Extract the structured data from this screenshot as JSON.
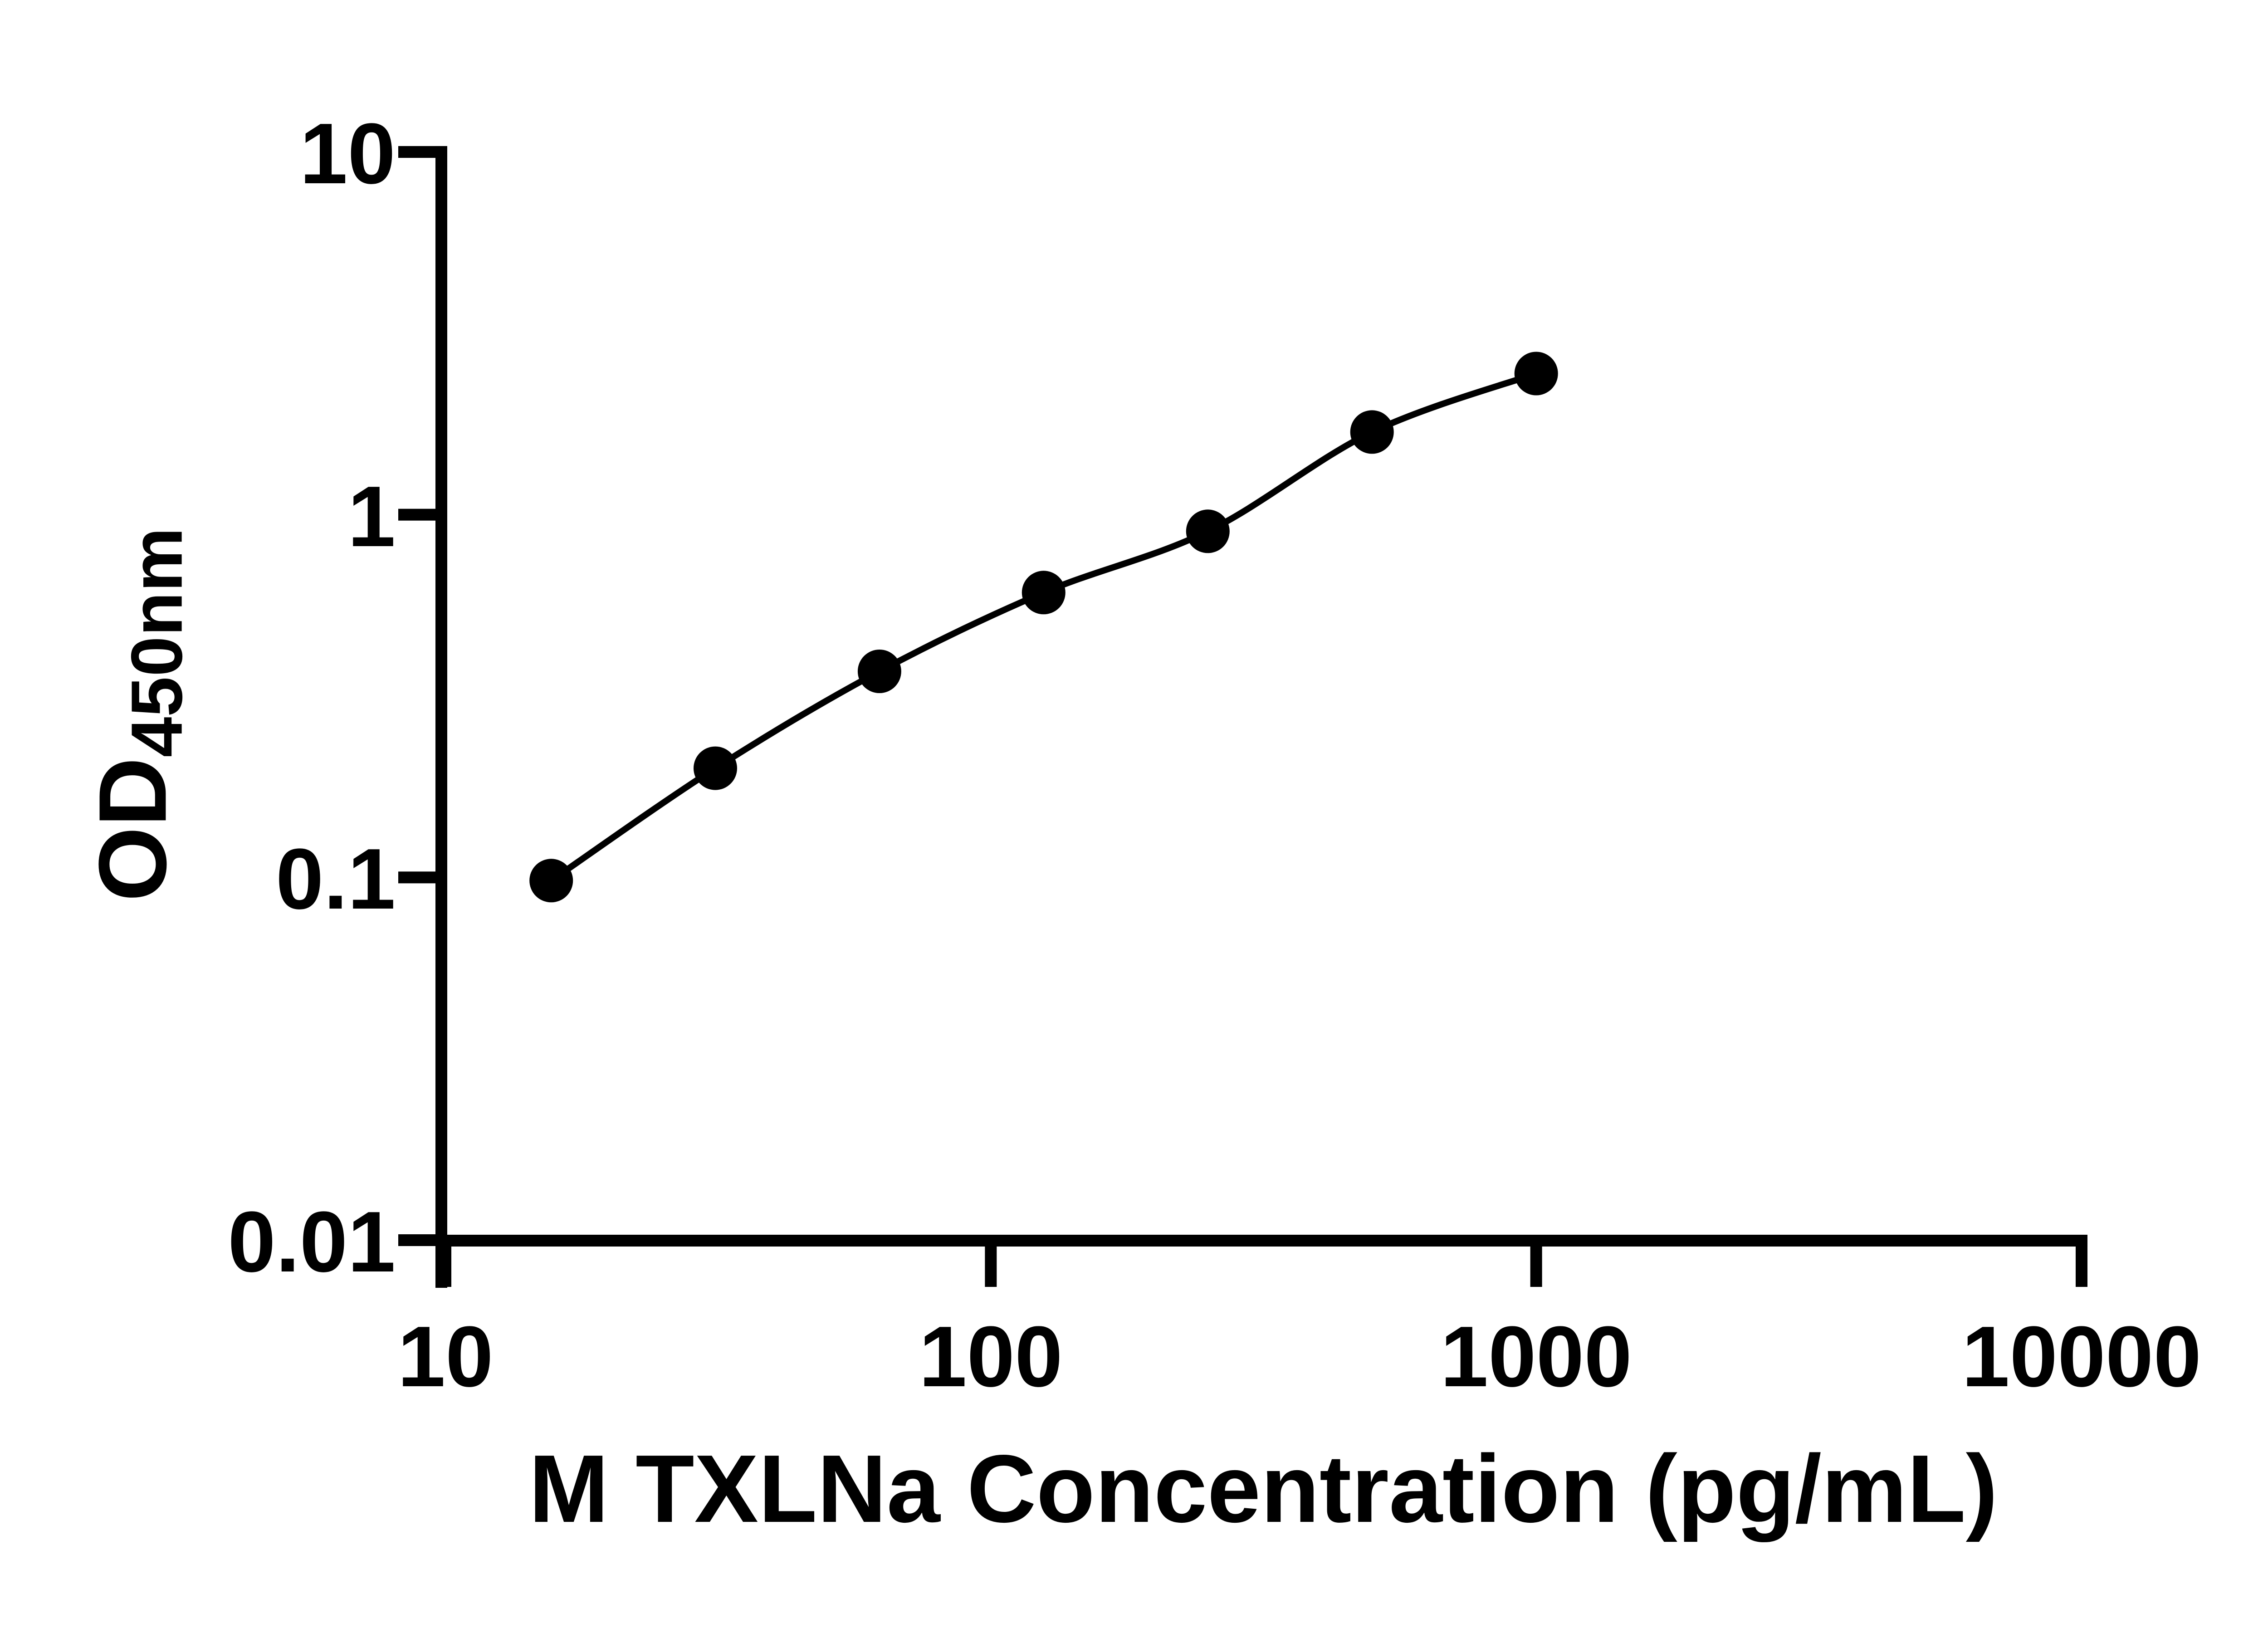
{
  "figure": {
    "background_color": "#ffffff",
    "ink_color": "#000000"
  },
  "chart_data": {
    "type": "scatter",
    "title": "",
    "xlabel": "M TXLNa Concentration (pg/mL)",
    "ylabel_main": "OD",
    "ylabel_sub": "450nm",
    "x_scale": "log10",
    "y_scale": "log10",
    "xlim": [
      10,
      10000
    ],
    "ylim": [
      0.01,
      10
    ],
    "grid": "off",
    "legend": "none",
    "x_ticks": [
      {
        "value": 10,
        "label": "10"
      },
      {
        "value": 100,
        "label": "100"
      },
      {
        "value": 1000,
        "label": "1000"
      },
      {
        "value": 10000,
        "label": "10000"
      }
    ],
    "y_ticks": [
      {
        "value": 0.01,
        "label": "0.01"
      },
      {
        "value": 0.1,
        "label": "0.1"
      },
      {
        "value": 1,
        "label": "1"
      },
      {
        "value": 10,
        "label": "10"
      }
    ],
    "series": [
      {
        "name": "standard-curve",
        "marker": "filled-circle",
        "color": "#000000",
        "line": "smooth",
        "points": [
          {
            "x": 15.63,
            "y": 0.098
          },
          {
            "x": 31.25,
            "y": 0.2
          },
          {
            "x": 62.5,
            "y": 0.37
          },
          {
            "x": 125,
            "y": 0.61
          },
          {
            "x": 250,
            "y": 0.9
          },
          {
            "x": 500,
            "y": 1.69
          },
          {
            "x": 1000,
            "y": 2.45
          }
        ]
      }
    ]
  }
}
